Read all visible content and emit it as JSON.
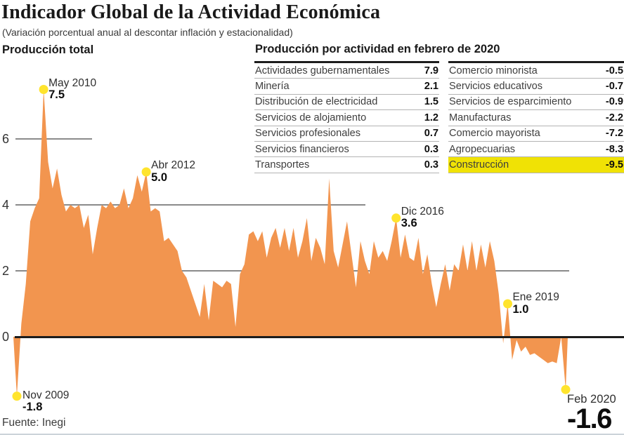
{
  "header": {
    "title": "Indicador Global de la Actividad Económica",
    "subtitle": "(Variación porcentual anual al descontar inflación y estacionalidad)"
  },
  "source": "Fuente: Inegi",
  "table": {
    "title": "Producción por actividad en febrero de 2020",
    "columns": [
      {
        "rows": [
          {
            "label": "Actividades gubernamentales",
            "value": "7.9"
          },
          {
            "label": "Minería",
            "value": "2.1"
          },
          {
            "label": "Distribución de electricidad",
            "value": "1.5"
          },
          {
            "label": "Servicios de alojamiento",
            "value": "1.2"
          },
          {
            "label": "Servicios profesionales",
            "value": "0.7"
          },
          {
            "label": "Servicios financieros",
            "value": "0.3"
          },
          {
            "label": "Transportes",
            "value": "0.3"
          }
        ]
      },
      {
        "rows": [
          {
            "label": "Comercio minorista",
            "value": "-0.5"
          },
          {
            "label": "Servicios educativos",
            "value": "-0.7"
          },
          {
            "label": "Servicios de esparcimiento",
            "value": "-0.9"
          },
          {
            "label": "Manufacturas",
            "value": "-2.2"
          },
          {
            "label": "Comercio mayorista",
            "value": "-7.2"
          },
          {
            "label": "Agropecuarias",
            "value": "-8.3"
          },
          {
            "label": "Construcción",
            "value": "-9.5",
            "highlight": true
          }
        ]
      }
    ]
  },
  "chart_data": {
    "type": "area",
    "title": "Producción total",
    "ylabel": "Variación porcentual anual",
    "frequency": "monthly",
    "start": "Nov 2009",
    "end": "Feb 2020",
    "ylim": [
      -2.6,
      8.0
    ],
    "yticks": [
      0,
      2,
      4,
      6
    ],
    "ytick_labels": [
      "0",
      "2",
      "4",
      "6"
    ],
    "grid": "partial horizontal segments, drawn behind series; zero axis drawn on top",
    "legend": "none",
    "values": [
      -1.8,
      0.4,
      1.6,
      3.5,
      3.9,
      4.2,
      7.5,
      5.3,
      4.5,
      5.1,
      4.3,
      3.8,
      4.0,
      3.9,
      4.0,
      3.3,
      3.7,
      2.5,
      3.3,
      4.0,
      3.9,
      4.1,
      3.9,
      4.0,
      4.5,
      3.9,
      4.2,
      4.9,
      4.4,
      5.0,
      3.8,
      3.9,
      3.8,
      2.9,
      3.0,
      2.8,
      2.6,
      2.0,
      1.8,
      1.4,
      1.0,
      0.6,
      1.6,
      0.5,
      1.7,
      1.6,
      1.5,
      1.7,
      1.6,
      0.3,
      1.9,
      2.2,
      3.1,
      3.2,
      2.9,
      3.2,
      2.4,
      3.0,
      3.3,
      2.7,
      3.3,
      2.6,
      3.3,
      2.4,
      2.9,
      3.6,
      2.3,
      3.0,
      2.7,
      2.2,
      4.8,
      2.6,
      2.1,
      2.8,
      3.5,
      2.5,
      1.5,
      2.9,
      2.3,
      1.9,
      2.9,
      2.4,
      2.6,
      2.3,
      2.9,
      3.6,
      2.4,
      3.1,
      2.4,
      2.3,
      3.0,
      1.9,
      2.5,
      1.6,
      0.9,
      1.6,
      2.2,
      1.4,
      2.2,
      2.0,
      2.8,
      2.0,
      2.9,
      2.0,
      2.8,
      2.1,
      2.9,
      2.3,
      1.3,
      -0.2,
      1.0,
      -0.7,
      -0.1,
      -0.45,
      -0.3,
      -0.55,
      -0.5,
      -0.6,
      -0.7,
      -0.8,
      -0.75,
      -0.8,
      0.0,
      -1.6
    ],
    "annotations": [
      {
        "date": "Nov 2009",
        "value": "-1.8",
        "month_index": 0,
        "placement": "start"
      },
      {
        "date": "May 2010",
        "value": "7.5",
        "month_index": 6,
        "placement": "peak"
      },
      {
        "date": "Abr 2012",
        "value": "5.0",
        "month_index": 29,
        "placement": "peak"
      },
      {
        "date": "Dic 2016",
        "value": "3.6",
        "month_index": 85,
        "placement": "peak"
      },
      {
        "date": "Ene 2019",
        "value": "1.0",
        "month_index": 110,
        "placement": "peak"
      },
      {
        "date": "Feb 2020",
        "value": "-1.6",
        "month_index": 123,
        "placement": "end"
      }
    ],
    "colors": {
      "area": "#F2954F",
      "marker": "#FFE42D",
      "grid": "#8A8A8A",
      "axis": "#1C1C1C",
      "highlight_row": "#F0E205"
    }
  }
}
